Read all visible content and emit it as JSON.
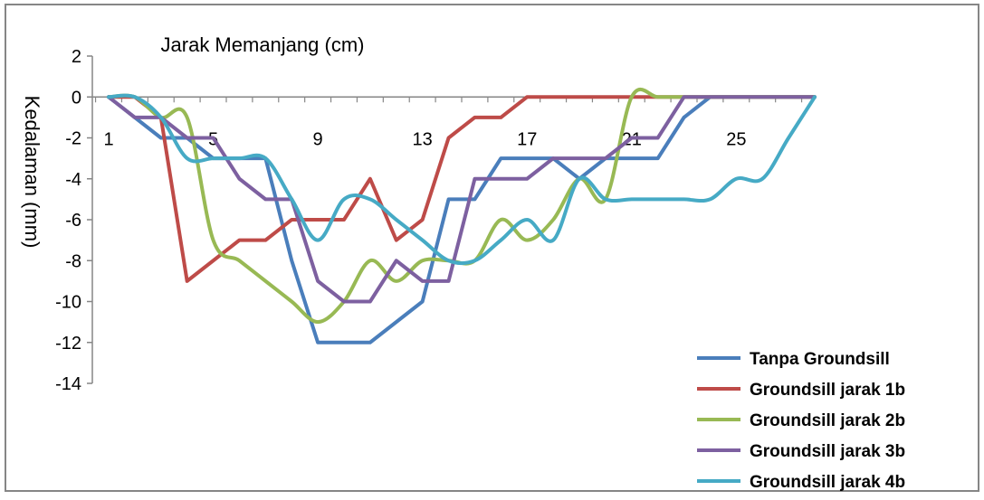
{
  "chart_data": {
    "type": "line",
    "title": "Jarak Memanjang (cm)",
    "xlabel": "",
    "ylabel": "Kedalaman (mm)",
    "x": [
      1,
      2,
      3,
      4,
      5,
      6,
      7,
      8,
      9,
      10,
      11,
      12,
      13,
      14,
      15,
      16,
      17,
      18,
      19,
      20,
      21,
      22,
      23,
      24,
      25,
      26,
      27,
      28
    ],
    "x_tick_labels": [
      "1",
      "5",
      "9",
      "13",
      "17",
      "21",
      "25"
    ],
    "x_tick_values": [
      1,
      5,
      9,
      13,
      17,
      21,
      25
    ],
    "ylim": [
      -14,
      2
    ],
    "y_ticks": [
      2,
      0,
      -2,
      -4,
      -6,
      -8,
      -10,
      -12,
      -14
    ],
    "grid": false,
    "legend_position": "bottom-right",
    "series": [
      {
        "name": "Tanpa Groundsill",
        "color": "#4a7ebb",
        "smooth": false,
        "values": [
          0,
          -1,
          -2,
          -2,
          -3,
          -3,
          -3,
          -8,
          -12,
          -12,
          -12,
          -11,
          -10,
          -5,
          -5,
          -3,
          -3,
          -3,
          -4,
          -3,
          -3,
          -3,
          -1,
          0,
          0,
          0,
          0,
          0
        ]
      },
      {
        "name": "Groundsill jarak 1b",
        "color": "#be4b48",
        "smooth": false,
        "values": [
          0,
          0,
          -1,
          -9,
          -8,
          -7,
          -7,
          -6,
          -6,
          -6,
          -4,
          -7,
          -6,
          -2,
          -1,
          -1,
          0,
          0,
          0,
          0,
          0,
          0,
          0,
          0,
          0,
          0,
          0,
          0
        ]
      },
      {
        "name": "Groundsill jarak 2b",
        "color": "#98b954",
        "smooth": true,
        "values": [
          0,
          0,
          -1,
          -1,
          -7,
          -8,
          -9,
          -10,
          -11,
          -10,
          -8,
          -9,
          -8,
          -8,
          -8,
          -6,
          -7,
          -6,
          -4,
          -5,
          0,
          0,
          0,
          0,
          0,
          0,
          0,
          0
        ]
      },
      {
        "name": "Groundsill jarak 3b",
        "color": "#7d60a0",
        "smooth": false,
        "values": [
          0,
          -1,
          -1,
          -2,
          -2,
          -4,
          -5,
          -5,
          -9,
          -10,
          -10,
          -8,
          -9,
          -9,
          -4,
          -4,
          -4,
          -3,
          -3,
          -3,
          -2,
          -2,
          0,
          0,
          0,
          0,
          0,
          0
        ]
      },
      {
        "name": "Groundsill jarak 4b",
        "color": "#46aac5",
        "smooth": true,
        "values": [
          0,
          0,
          -1,
          -3,
          -3,
          -3,
          -3,
          -5,
          -7,
          -5,
          -5,
          -6,
          -7,
          -8,
          -8,
          -7,
          -6,
          -7,
          -4,
          -5,
          -5,
          -5,
          -5,
          -5,
          -4,
          -4,
          -2,
          0
        ]
      }
    ]
  }
}
